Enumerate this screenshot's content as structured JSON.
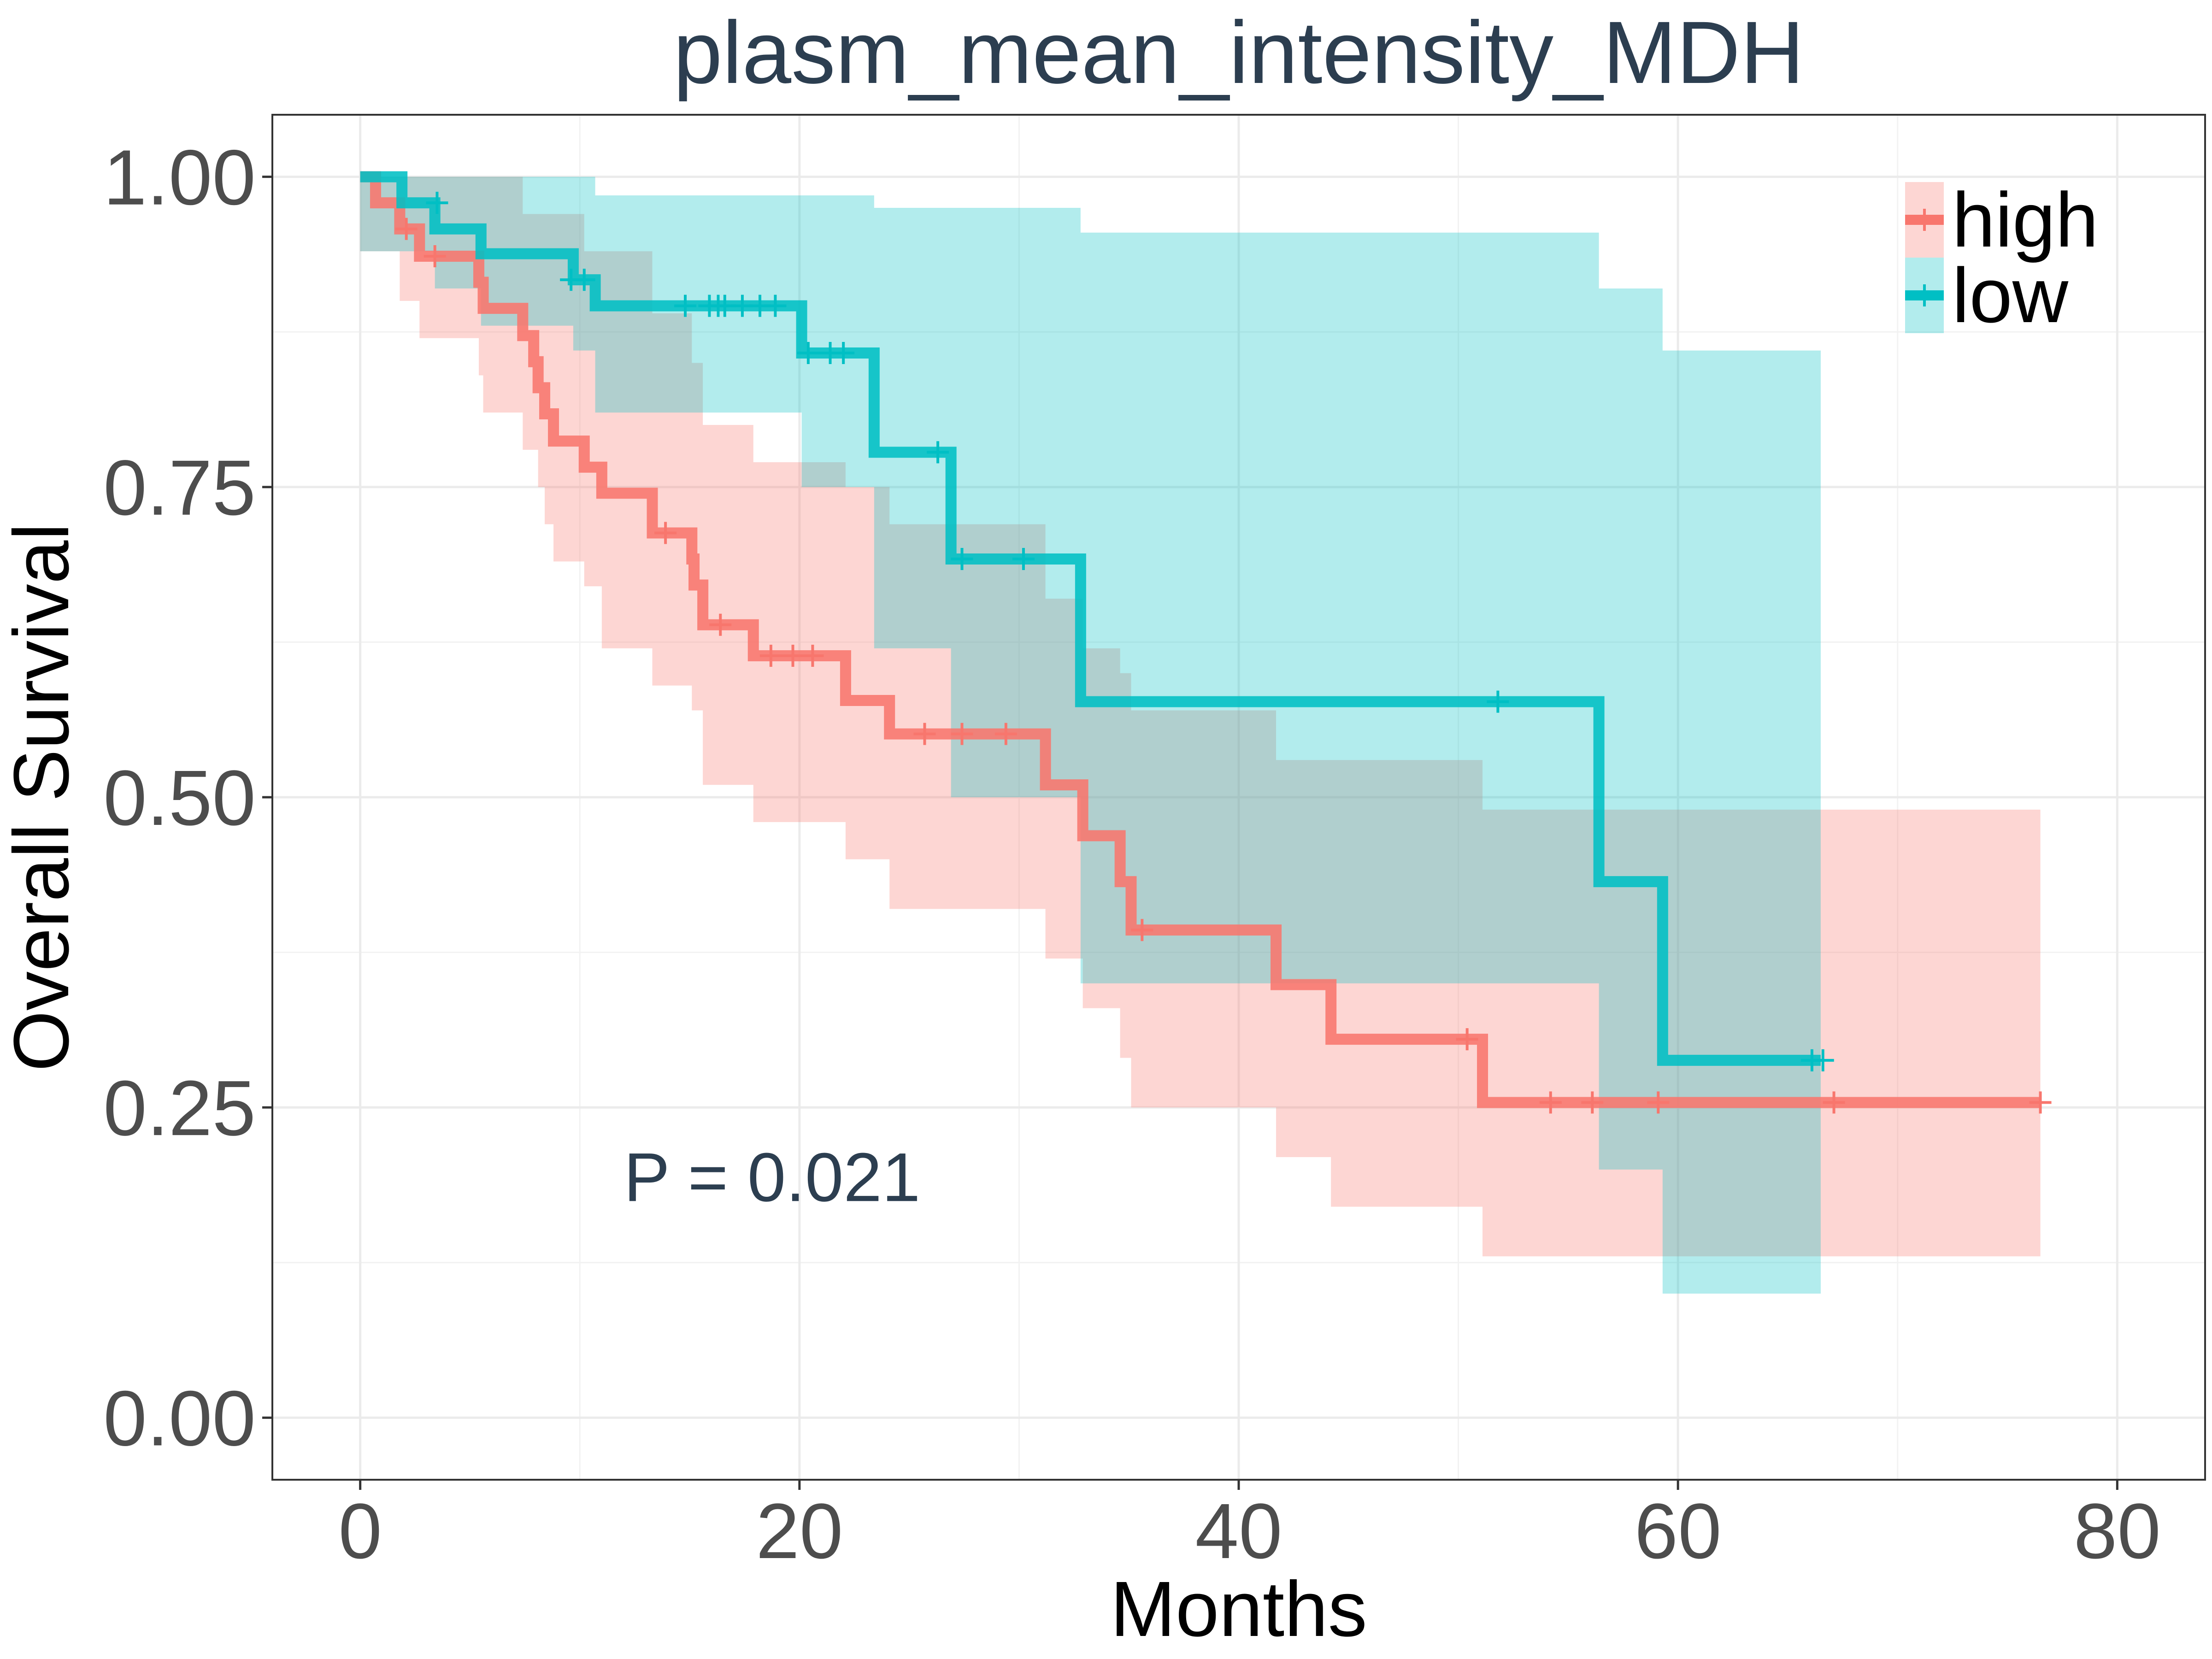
{
  "chart_data": {
    "type": "line",
    "subtype": "kaplan-meier",
    "title": "plasm_mean_intensity_MDH",
    "xlabel": "Months",
    "ylabel": "Overall Survival",
    "xlim": [
      -4,
      84
    ],
    "ylim": [
      -0.05,
      1.05
    ],
    "x_ticks": [
      0,
      20,
      40,
      60,
      80
    ],
    "x_tick_labels": [
      "0",
      "20",
      "40",
      "60",
      "80"
    ],
    "y_ticks": [
      0,
      0.25,
      0.5,
      0.75,
      1
    ],
    "y_tick_labels": [
      "0.00",
      "0.25",
      "0.50",
      "0.75",
      "1.00"
    ],
    "grid": true,
    "legend_position": "top-right",
    "annotation": "P = 0.021",
    "annotation_x": 12,
    "annotation_y": 0.195,
    "series": [
      {
        "name": "high",
        "color": "#f8766d",
        "steps": [
          [
            0,
            1.0
          ],
          [
            0.7,
            0.979
          ],
          [
            1.8,
            0.958
          ],
          [
            2.7,
            0.936
          ],
          [
            5.4,
            0.915
          ],
          [
            5.6,
            0.894
          ],
          [
            7.4,
            0.872
          ],
          [
            7.9,
            0.851
          ],
          [
            8.1,
            0.83
          ],
          [
            8.4,
            0.809
          ],
          [
            8.8,
            0.787
          ],
          [
            10.2,
            0.766
          ],
          [
            11.0,
            0.745
          ],
          [
            13.3,
            0.713
          ],
          [
            15.1,
            0.692
          ],
          [
            15.2,
            0.671
          ],
          [
            15.6,
            0.639
          ],
          [
            17.9,
            0.614
          ],
          [
            22.1,
            0.578
          ],
          [
            24.1,
            0.551
          ],
          [
            31.2,
            0.51
          ],
          [
            32.9,
            0.469
          ],
          [
            34.6,
            0.432
          ],
          [
            35.1,
            0.393
          ],
          [
            41.7,
            0.349
          ],
          [
            44.2,
            0.305
          ],
          [
            51.1,
            0.254
          ],
          [
            76.5,
            0.254
          ]
        ],
        "ci_lower": [
          [
            0,
            0.94
          ],
          [
            1.8,
            0.9
          ],
          [
            2.7,
            0.87
          ],
          [
            5.4,
            0.84
          ],
          [
            5.6,
            0.81
          ],
          [
            7.4,
            0.78
          ],
          [
            8.1,
            0.75
          ],
          [
            8.4,
            0.72
          ],
          [
            8.8,
            0.69
          ],
          [
            10.2,
            0.67
          ],
          [
            11.0,
            0.62
          ],
          [
            13.3,
            0.59
          ],
          [
            15.1,
            0.57
          ],
          [
            15.6,
            0.51
          ],
          [
            17.9,
            0.48
          ],
          [
            22.1,
            0.45
          ],
          [
            24.1,
            0.41
          ],
          [
            31.2,
            0.37
          ],
          [
            32.9,
            0.33
          ],
          [
            34.6,
            0.29
          ],
          [
            35.1,
            0.25
          ],
          [
            41.7,
            0.21
          ],
          [
            44.2,
            0.17
          ],
          [
            51.1,
            0.13
          ],
          [
            76.5,
            0.13
          ]
        ],
        "ci_upper": [
          [
            0,
            1.0
          ],
          [
            7.4,
            0.97
          ],
          [
            10.2,
            0.94
          ],
          [
            13.3,
            0.89
          ],
          [
            15.1,
            0.85
          ],
          [
            15.6,
            0.8
          ],
          [
            17.9,
            0.77
          ],
          [
            22.1,
            0.75
          ],
          [
            24.1,
            0.72
          ],
          [
            31.2,
            0.66
          ],
          [
            32.9,
            0.62
          ],
          [
            34.6,
            0.6
          ],
          [
            35.1,
            0.57
          ],
          [
            41.7,
            0.53
          ],
          [
            51.1,
            0.49
          ],
          [
            76.5,
            0.49
          ]
        ],
        "censored": [
          [
            2.1,
            0.958
          ],
          [
            3.4,
            0.936
          ],
          [
            13.9,
            0.713
          ],
          [
            16.4,
            0.639
          ],
          [
            18.7,
            0.614
          ],
          [
            19.7,
            0.614
          ],
          [
            20.6,
            0.614
          ],
          [
            25.7,
            0.551
          ],
          [
            27.4,
            0.551
          ],
          [
            29.4,
            0.551
          ],
          [
            35.6,
            0.393
          ],
          [
            50.4,
            0.305
          ],
          [
            54.2,
            0.254
          ],
          [
            56.1,
            0.254
          ],
          [
            59.1,
            0.254
          ],
          [
            67.1,
            0.254
          ],
          [
            76.5,
            0.254
          ]
        ]
      },
      {
        "name": "low",
        "color": "#00bfc4",
        "steps": [
          [
            0,
            1.0
          ],
          [
            1.9,
            0.979
          ],
          [
            3.4,
            0.958
          ],
          [
            5.5,
            0.938
          ],
          [
            9.7,
            0.917
          ],
          [
            10.7,
            0.896
          ],
          [
            20.1,
            0.858
          ],
          [
            23.4,
            0.778
          ],
          [
            26.9,
            0.692
          ],
          [
            32.8,
            0.577
          ],
          [
            56.4,
            0.432
          ],
          [
            59.3,
            0.288
          ],
          [
            66.5,
            0.288
          ]
        ],
        "ci_lower": [
          [
            0,
            0.94
          ],
          [
            3.4,
            0.91
          ],
          [
            5.5,
            0.88
          ],
          [
            9.7,
            0.86
          ],
          [
            10.7,
            0.81
          ],
          [
            20.1,
            0.75
          ],
          [
            23.4,
            0.62
          ],
          [
            26.9,
            0.5
          ],
          [
            32.8,
            0.35
          ],
          [
            56.4,
            0.2
          ],
          [
            59.3,
            0.1
          ],
          [
            66.5,
            0.1
          ]
        ],
        "ci_upper": [
          [
            0,
            1.0
          ],
          [
            10.7,
            0.985
          ],
          [
            23.4,
            0.975
          ],
          [
            32.8,
            0.955
          ],
          [
            56.4,
            0.91
          ],
          [
            59.3,
            0.86
          ],
          [
            66.5,
            0.86
          ]
        ],
        "censored": [
          [
            3.5,
            0.979
          ],
          [
            9.6,
            0.917
          ],
          [
            10.2,
            0.917
          ],
          [
            14.8,
            0.896
          ],
          [
            15.9,
            0.896
          ],
          [
            16.3,
            0.896
          ],
          [
            16.6,
            0.896
          ],
          [
            17.4,
            0.896
          ],
          [
            18.2,
            0.896
          ],
          [
            18.9,
            0.896
          ],
          [
            20.4,
            0.858
          ],
          [
            21.4,
            0.858
          ],
          [
            22.0,
            0.858
          ],
          [
            26.3,
            0.778
          ],
          [
            27.4,
            0.692
          ],
          [
            30.2,
            0.692
          ],
          [
            51.8,
            0.577
          ],
          [
            66.1,
            0.288
          ],
          [
            66.6,
            0.288
          ]
        ]
      }
    ]
  }
}
